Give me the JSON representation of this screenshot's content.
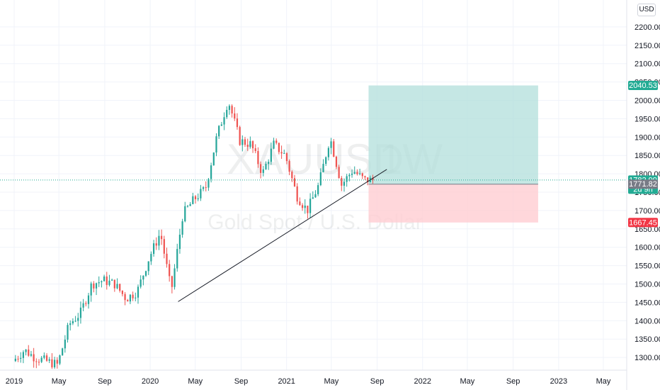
{
  "chart_data": {
    "type": "candlestick",
    "symbol": "XAUUSD",
    "interval": "1W",
    "description": "Gold Spot / U.S. Dollar",
    "currency": "USD",
    "ylim": [
      1250,
      2250
    ],
    "y_ticks": [
      "2200.00",
      "2150.00",
      "2100.00",
      "2050.00",
      "2000.00",
      "1950.00",
      "1900.00",
      "1850.00",
      "1800.00",
      "1750.00",
      "1700.00",
      "1650.00",
      "1600.00",
      "1550.00",
      "1500.00",
      "1450.00",
      "1400.00",
      "1350.00",
      "1300.00"
    ],
    "x_ticks": [
      {
        "label": "2019",
        "date": "2019-01"
      },
      {
        "label": "May",
        "date": "2019-05"
      },
      {
        "label": "Sep",
        "date": "2019-09"
      },
      {
        "label": "2020",
        "date": "2020-01"
      },
      {
        "label": "May",
        "date": "2020-05"
      },
      {
        "label": "Sep",
        "date": "2020-09"
      },
      {
        "label": "2021",
        "date": "2021-01"
      },
      {
        "label": "May",
        "date": "2021-05"
      },
      {
        "label": "Sep",
        "date": "2021-09"
      },
      {
        "label": "2022",
        "date": "2022-01"
      },
      {
        "label": "May",
        "date": "2022-05"
      },
      {
        "label": "Sep",
        "date": "2022-09"
      },
      {
        "label": "2023",
        "date": "2023-01"
      },
      {
        "label": "May",
        "date": "2023-05"
      }
    ],
    "close_anchors": [
      [
        "2019-01",
        1290
      ],
      [
        "2019-02",
        1320
      ],
      [
        "2019-03",
        1300
      ],
      [
        "2019-04",
        1290
      ],
      [
        "2019-05",
        1280
      ],
      [
        "2019-06",
        1390
      ],
      [
        "2019-07",
        1420
      ],
      [
        "2019-08",
        1500
      ],
      [
        "2019-09",
        1510
      ],
      [
        "2019-10",
        1500
      ],
      [
        "2019-11",
        1460
      ],
      [
        "2019-12",
        1480
      ],
      [
        "2020-01",
        1570
      ],
      [
        "2020-02",
        1640
      ],
      [
        "2020-03",
        1480
      ],
      [
        "2020-04",
        1690
      ],
      [
        "2020-05",
        1730
      ],
      [
        "2020-06",
        1760
      ],
      [
        "2020-07",
        1900
      ],
      [
        "2020-08",
        2000
      ],
      [
        "2020-09",
        1890
      ],
      [
        "2020-10",
        1880
      ],
      [
        "2020-11",
        1800
      ],
      [
        "2020-12",
        1880
      ],
      [
        "2021-01",
        1850
      ],
      [
        "2021-02",
        1740
      ],
      [
        "2021-03",
        1700
      ],
      [
        "2021-04",
        1770
      ],
      [
        "2021-05",
        1900
      ],
      [
        "2021-06",
        1770
      ],
      [
        "2021-07",
        1810
      ],
      [
        "2021-08",
        1783
      ]
    ],
    "trendline": {
      "from": [
        "2020-03-16",
        1452
      ],
      "to": [
        "2021-09-27",
        1812
      ]
    },
    "position": {
      "start": "2021-08-09",
      "end": "2022-11-07",
      "entry": 1771.82,
      "target": 2040.53,
      "stop": 1667.45
    },
    "last_price": 1782.99,
    "price_labels": [
      {
        "value": "2040.53",
        "color": "#22ab94"
      },
      {
        "value": "1782.99",
        "sub": "2d 9h",
        "color": "#22ab94"
      },
      {
        "value": "1771.82",
        "color": "#787b86"
      },
      {
        "value": "1667.45",
        "color": "#f23645"
      }
    ],
    "up_color": "#26a69a",
    "down_color": "#ef5350",
    "target_fill": "#b2dfdb",
    "stop_fill": "#ffcdd2"
  }
}
